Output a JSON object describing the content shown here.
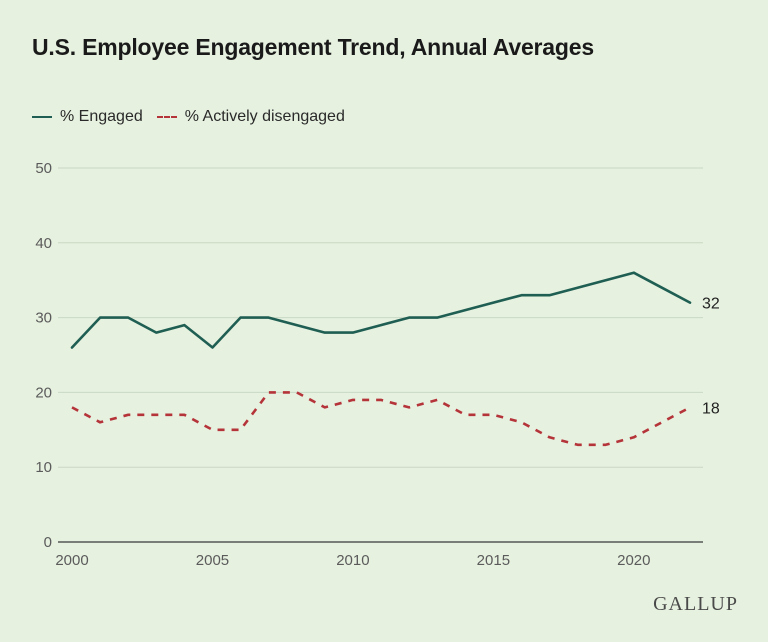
{
  "title": "U.S. Employee Engagement Trend, Annual Averages",
  "legend": {
    "engaged": "% Engaged",
    "disengaged": "% Actively disengaged"
  },
  "brand": "GALLUP",
  "colors": {
    "engaged": "#1f5e52",
    "disengaged": "#b5343a",
    "grid": "#c9d8c4",
    "background": "#e6f1df"
  },
  "chart_data": {
    "type": "line",
    "title": "U.S. Employee Engagement Trend, Annual Averages",
    "xlabel": "",
    "ylabel": "",
    "x": [
      2000,
      2001,
      2002,
      2003,
      2004,
      2005,
      2006,
      2007,
      2008,
      2009,
      2010,
      2011,
      2012,
      2013,
      2014,
      2015,
      2016,
      2017,
      2018,
      2019,
      2020,
      2021,
      2022
    ],
    "series": [
      {
        "name": "% Engaged",
        "style": "solid",
        "values": [
          26,
          30,
          30,
          28,
          29,
          26,
          30,
          30,
          29,
          28,
          28,
          29,
          30,
          30,
          31,
          32,
          33,
          33,
          34,
          35,
          36,
          34,
          32
        ],
        "end_label": "32"
      },
      {
        "name": "% Actively disengaged",
        "style": "dashed",
        "values": [
          18,
          16,
          17,
          17,
          17,
          15,
          15,
          20,
          20,
          18,
          19,
          19,
          18,
          19,
          17,
          17,
          16,
          14,
          13,
          13,
          14,
          16,
          18
        ],
        "end_label": "18"
      }
    ],
    "xlim": [
      2000,
      2022
    ],
    "ylim": [
      0,
      50
    ],
    "x_ticks": [
      2000,
      2005,
      2010,
      2015,
      2020
    ],
    "y_ticks": [
      0,
      10,
      20,
      30,
      40,
      50
    ],
    "grid": true,
    "legend_position": "top-left"
  }
}
